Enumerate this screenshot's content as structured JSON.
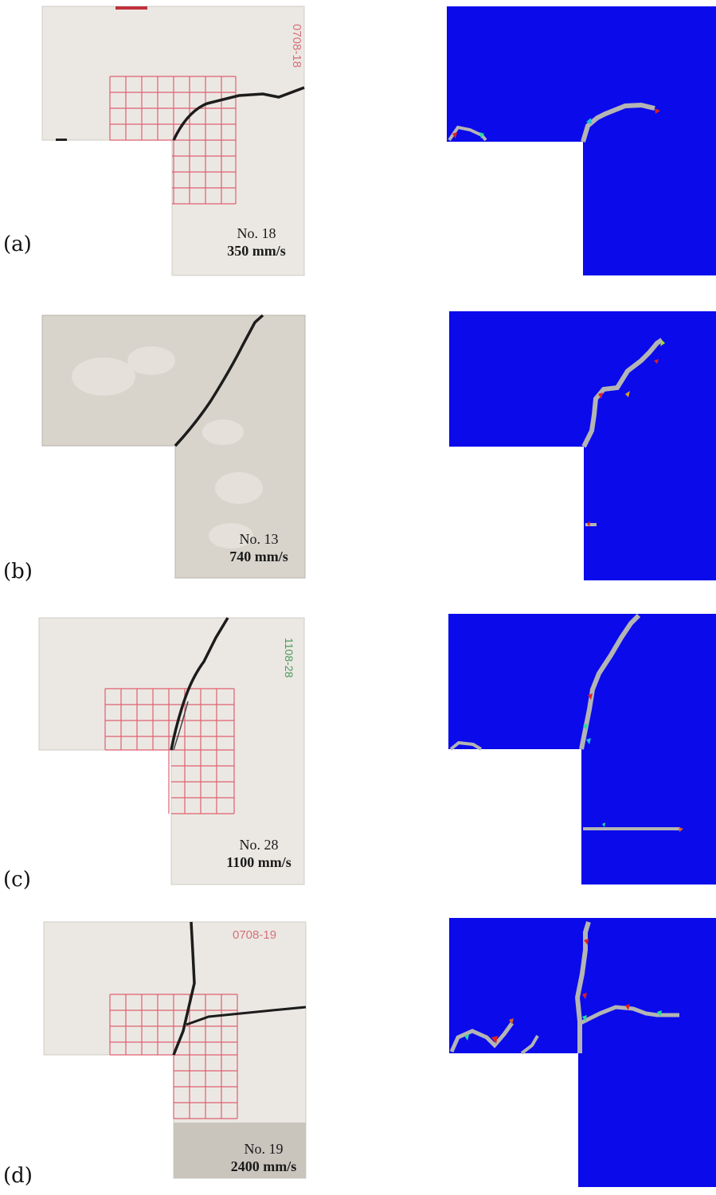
{
  "panels": [
    {
      "label": "(a)",
      "specimen": "No. 18",
      "speed": "350 mm/s",
      "handwritten": "0708-18"
    },
    {
      "label": "(b)",
      "specimen": "No. 13",
      "speed": "740 mm/s",
      "handwritten": ""
    },
    {
      "label": "(c)",
      "specimen": "No. 28",
      "speed": "1100 mm/s",
      "handwritten": "1108-28"
    },
    {
      "label": "(d)",
      "specimen": "No. 19",
      "speed": "2400 mm/s",
      "handwritten": "0708-19"
    }
  ],
  "colors": {
    "sim_background": "#0a0aeb",
    "crack": "#b4b4b4",
    "grid": "#e06070",
    "concrete": "#ebe8e3"
  }
}
